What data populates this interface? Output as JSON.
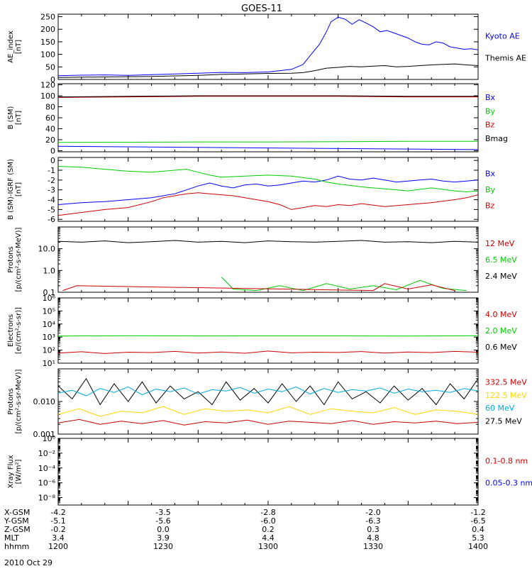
{
  "title": "GOES-11",
  "footer_date": "2010 Oct 29",
  "ephemeris": {
    "labels": [
      "X-GSM",
      "Y-GSM",
      "Z-GSM",
      "MLT",
      "hhmm"
    ],
    "columns": [
      [
        "-4.2",
        "-5.1",
        "-0.2",
        "3.4",
        "1200"
      ],
      [
        "-3.5",
        "-5.6",
        "0.0",
        "3.9",
        "1230"
      ],
      [
        "-2.8",
        "-6.0",
        "0.2",
        "4.4",
        "1300"
      ],
      [
        "-2.0",
        "-6.3",
        "0.3",
        "4.8",
        "1330"
      ],
      [
        "-1.2",
        "-6.5",
        "0.4",
        "5.3",
        "1400"
      ]
    ]
  },
  "chart_data": [
    {
      "type": "line",
      "ylabel_lines": [
        "AE_index",
        "[nT]"
      ],
      "ylim": [
        0,
        260
      ],
      "yticks": [
        0,
        50,
        100,
        150,
        200,
        250
      ],
      "ytick_labels": [
        "0",
        "50",
        "100",
        "150",
        "200",
        "250"
      ],
      "legend": [
        {
          "label": "Kyoto AE",
          "color": "#0000ff"
        },
        {
          "label": "Themis AE",
          "color": "#000000"
        }
      ],
      "series": [
        {
          "name": "Kyoto AE",
          "color": "#0000ff",
          "x": [
            0,
            10,
            20,
            30,
            40,
            50,
            60,
            70,
            80,
            90,
            100,
            105,
            108,
            112,
            115,
            117,
            120,
            123,
            126,
            129,
            132,
            135,
            138,
            141,
            144,
            147,
            150,
            153,
            156,
            159,
            162,
            165,
            168,
            171,
            174,
            177,
            180
          ],
          "y": [
            15,
            17,
            18,
            16,
            19,
            22,
            25,
            28,
            27,
            30,
            40,
            60,
            95,
            140,
            190,
            230,
            248,
            240,
            220,
            238,
            225,
            210,
            190,
            195,
            185,
            175,
            165,
            150,
            140,
            138,
            150,
            145,
            130,
            125,
            120,
            122,
            118
          ]
        },
        {
          "name": "Themis AE",
          "color": "#000000",
          "x": [
            0,
            10,
            20,
            30,
            40,
            50,
            60,
            70,
            80,
            90,
            100,
            105,
            110,
            115,
            120,
            125,
            130,
            135,
            140,
            145,
            150,
            155,
            160,
            165,
            170,
            175,
            180
          ],
          "y": [
            8,
            9,
            10,
            11,
            12,
            14,
            16,
            20,
            22,
            24,
            25,
            27,
            35,
            45,
            48,
            52,
            50,
            53,
            55,
            50,
            52,
            55,
            58,
            60,
            62,
            58,
            55
          ]
        }
      ]
    },
    {
      "type": "line",
      "ylabel_lines": [
        "B (SM)",
        "[nT]"
      ],
      "ylim": [
        -2,
        122
      ],
      "yticks": [
        0,
        20,
        40,
        60,
        80,
        100,
        120
      ],
      "ytick_labels": [
        "0",
        "20",
        "40",
        "60",
        "80",
        "100",
        "120"
      ],
      "legend": [
        {
          "label": "Bx",
          "color": "#0000ff"
        },
        {
          "label": "By",
          "color": "#00cc00"
        },
        {
          "label": "Bz",
          "color": "#cc0000"
        },
        {
          "label": "Bmag",
          "color": "#000000"
        }
      ],
      "series": [
        {
          "name": "Bx",
          "color": "#0000ff",
          "x": [
            0,
            30,
            60,
            90,
            120,
            150,
            180
          ],
          "y": [
            8,
            7,
            6,
            5,
            4,
            3,
            2
          ]
        },
        {
          "name": "By",
          "color": "#00cc00",
          "x": [
            0,
            30,
            60,
            90,
            120,
            150,
            180
          ],
          "y": [
            15,
            15.5,
            16,
            16,
            16.5,
            17,
            17
          ]
        },
        {
          "name": "Bz",
          "color": "#cc0000",
          "x": [
            0,
            30,
            60,
            90,
            120,
            150,
            180
          ],
          "y": [
            97,
            98,
            99,
            99,
            99,
            98,
            98
          ]
        },
        {
          "name": "Bmag",
          "color": "#000000",
          "x": [
            0,
            30,
            60,
            90,
            120,
            150,
            180
          ],
          "y": [
            98,
            99,
            100,
            100,
            100,
            99,
            99
          ]
        }
      ]
    },
    {
      "type": "line",
      "ylabel_lines": [
        "B (SM)-IGRF (SM)",
        "[nT]"
      ],
      "ylim": [
        -6.2,
        0.3
      ],
      "yticks": [
        0,
        -1,
        -2,
        -3,
        -4,
        -5,
        -6
      ],
      "ytick_labels": [
        "0",
        "-1",
        "-2",
        "-3",
        "-4",
        "-5",
        "-6"
      ],
      "legend": [
        {
          "label": "Bx",
          "color": "#0000ff"
        },
        {
          "label": "By",
          "color": "#00cc00"
        },
        {
          "label": "Bz",
          "color": "#cc0000"
        }
      ],
      "series": [
        {
          "name": "Bx",
          "color": "#0000ff",
          "x": [
            0,
            10,
            20,
            30,
            40,
            45,
            50,
            55,
            60,
            65,
            70,
            75,
            80,
            85,
            90,
            95,
            100,
            105,
            110,
            115,
            120,
            125,
            130,
            135,
            140,
            145,
            150,
            155,
            160,
            165,
            170,
            175,
            180
          ],
          "y": [
            -4.5,
            -4.3,
            -4.2,
            -4.0,
            -3.8,
            -3.6,
            -3.4,
            -3.0,
            -2.6,
            -2.3,
            -2.6,
            -2.8,
            -2.5,
            -2.4,
            -2.6,
            -2.5,
            -2.3,
            -2.1,
            -2.2,
            -2.0,
            -1.6,
            -1.9,
            -2.0,
            -1.8,
            -2.0,
            -2.2,
            -2.1,
            -2.0,
            -1.9,
            -2.1,
            -2.2,
            -2.1,
            -2.0
          ]
        },
        {
          "name": "By",
          "color": "#00cc00",
          "x": [
            0,
            10,
            20,
            30,
            40,
            50,
            55,
            60,
            65,
            70,
            80,
            90,
            100,
            110,
            115,
            120,
            130,
            140,
            150,
            160,
            170,
            175,
            180
          ],
          "y": [
            -0.6,
            -0.7,
            -0.9,
            -1.1,
            -1.2,
            -1.0,
            -0.9,
            -1.2,
            -1.5,
            -1.7,
            -1.6,
            -1.5,
            -1.6,
            -1.9,
            -2.2,
            -2.4,
            -2.7,
            -2.9,
            -3.1,
            -2.8,
            -3.1,
            -3.2,
            -3.1
          ]
        },
        {
          "name": "Bz",
          "color": "#cc0000",
          "x": [
            0,
            10,
            20,
            30,
            40,
            45,
            50,
            55,
            60,
            65,
            70,
            75,
            80,
            85,
            90,
            95,
            100,
            105,
            110,
            115,
            120,
            125,
            130,
            140,
            150,
            160,
            170,
            175,
            180
          ],
          "y": [
            -5.6,
            -5.3,
            -5.0,
            -4.8,
            -4.2,
            -3.8,
            -3.6,
            -3.4,
            -3.3,
            -3.4,
            -3.5,
            -3.6,
            -3.8,
            -4.0,
            -4.2,
            -4.5,
            -5.0,
            -4.8,
            -4.6,
            -4.7,
            -4.5,
            -4.6,
            -4.4,
            -4.7,
            -4.5,
            -4.3,
            -4.0,
            -3.8,
            -3.5
          ]
        }
      ]
    },
    {
      "type": "line",
      "yscale": "log",
      "ylabel_lines": [
        "Protons",
        "[p/(cm²-s-sr-MeV)]"
      ],
      "ylim": [
        0.1,
        100
      ],
      "yticks": [
        0.1,
        1,
        10
      ],
      "ytick_labels": [
        "0.1",
        "1.0",
        "10.0"
      ],
      "legend": [
        {
          "label": "12 MeV",
          "color": "#cc0000"
        },
        {
          "label": "6.5 MeV",
          "color": "#00cc00"
        },
        {
          "label": "2.4 MeV",
          "color": "#000000"
        }
      ],
      "series": [
        {
          "name": "2.4 MeV",
          "color": "#000000",
          "x": [
            0,
            10,
            20,
            30,
            40,
            50,
            60,
            70,
            80,
            90,
            100,
            110,
            120,
            130,
            140,
            150,
            160,
            170,
            180
          ],
          "y": [
            22,
            20,
            23,
            19,
            21,
            24,
            20,
            22,
            19,
            23,
            21,
            20,
            22,
            24,
            20,
            21,
            19,
            22,
            20
          ]
        },
        {
          "name": "6.5 MeV",
          "color": "#00cc00",
          "x": [
            70,
            75,
            85,
            95,
            105,
            115,
            125,
            135,
            145,
            155,
            165,
            175
          ],
          "y": [
            0.5,
            0.14,
            0.12,
            0.2,
            0.12,
            0.25,
            0.14,
            0.2,
            0.13,
            0.35,
            0.15,
            0.12
          ]
        },
        {
          "name": "12 MeV",
          "color": "#cc0000",
          "x": [
            2,
            8,
            135,
            140,
            150,
            160,
            170
          ],
          "y": [
            0.12,
            0.2,
            0.12,
            0.25,
            0.14,
            0.22,
            0.12
          ]
        }
      ]
    },
    {
      "type": "line",
      "yscale": "log",
      "ylabel_lines": [
        "Electrons",
        "[e/(cm²-s-sr)]"
      ],
      "ylim": [
        10,
        1000000
      ],
      "yticks": [
        10,
        100,
        1000,
        10000,
        100000,
        1000000
      ],
      "ytick_labels": [
        "10¹",
        "10²",
        "10³",
        "10⁴",
        "10⁵",
        "10⁶"
      ],
      "legend": [
        {
          "label": "4.0 MeV",
          "color": "#cc0000"
        },
        {
          "label": "2.0 MeV",
          "color": "#00cc00"
        },
        {
          "label": "0.6 MeV",
          "color": "#000000"
        }
      ],
      "series": [
        {
          "name": "2.0 MeV",
          "color": "#00cc00",
          "x": [
            0,
            30,
            60,
            90,
            120,
            150,
            180
          ],
          "y": [
            1200,
            1250,
            1220,
            1230,
            1240,
            1210,
            1250
          ]
        },
        {
          "name": "4.0 MeV",
          "color": "#cc0000",
          "x": [
            0,
            10,
            20,
            30,
            40,
            50,
            60,
            70,
            80,
            90,
            100,
            110,
            120,
            130,
            140,
            150,
            160,
            170,
            180
          ],
          "y": [
            60,
            75,
            55,
            70,
            65,
            80,
            60,
            72,
            58,
            85,
            62,
            70,
            66,
            78,
            60,
            72,
            65,
            80,
            70
          ]
        }
      ]
    },
    {
      "type": "line",
      "yscale": "log",
      "ylabel_lines": [
        "Protons",
        "[p/(cm²-s-sr-MeV)]"
      ],
      "ylim": [
        0.001,
        0.1
      ],
      "yticks": [
        0.001,
        0.01
      ],
      "ytick_labels": [
        "0.001",
        "0.010"
      ],
      "legend": [
        {
          "label": "332.5 MeV",
          "color": "#cc0000"
        },
        {
          "label": "122.5 MeV",
          "color": "#ffd700"
        },
        {
          "label": "60 MeV",
          "color": "#00aadd"
        },
        {
          "label": "27.5 MeV",
          "color": "#000000"
        }
      ],
      "series": [
        {
          "name": "27.5 MeV",
          "color": "#000000",
          "x": [
            0,
            6,
            12,
            18,
            24,
            30,
            36,
            42,
            48,
            54,
            60,
            66,
            72,
            78,
            84,
            90,
            96,
            102,
            108,
            114,
            120,
            126,
            132,
            138,
            144,
            150,
            156,
            162,
            168,
            174,
            180
          ],
          "y": [
            0.03,
            0.012,
            0.05,
            0.008,
            0.035,
            0.01,
            0.04,
            0.009,
            0.03,
            0.012,
            0.02,
            0.008,
            0.04,
            0.011,
            0.025,
            0.009,
            0.035,
            0.01,
            0.03,
            0.008,
            0.04,
            0.012,
            0.02,
            0.009,
            0.03,
            0.011,
            0.025,
            0.008,
            0.035,
            0.012,
            0.05
          ]
        },
        {
          "name": "60 MeV",
          "color": "#00aadd",
          "x": [
            0,
            6,
            12,
            18,
            24,
            30,
            36,
            42,
            48,
            54,
            60,
            66,
            72,
            78,
            84,
            90,
            96,
            102,
            108,
            114,
            120,
            126,
            132,
            138,
            144,
            150,
            156,
            162,
            168,
            174,
            180
          ],
          "y": [
            0.018,
            0.022,
            0.015,
            0.025,
            0.019,
            0.028,
            0.016,
            0.024,
            0.02,
            0.026,
            0.017,
            0.023,
            0.021,
            0.027,
            0.018,
            0.024,
            0.02,
            0.028,
            0.017,
            0.025,
            0.019,
            0.023,
            0.021,
            0.026,
            0.018,
            0.024,
            0.02,
            0.022,
            0.019,
            0.025,
            0.021
          ]
        },
        {
          "name": "122.5 MeV",
          "color": "#ffd700",
          "x": [
            0,
            9,
            18,
            27,
            36,
            45,
            54,
            63,
            72,
            81,
            90,
            99,
            108,
            117,
            126,
            135,
            144,
            153,
            162,
            171,
            180
          ],
          "y": [
            0.004,
            0.006,
            0.0035,
            0.005,
            0.0045,
            0.007,
            0.004,
            0.006,
            0.005,
            0.0055,
            0.0045,
            0.007,
            0.004,
            0.006,
            0.005,
            0.0045,
            0.0065,
            0.004,
            0.0055,
            0.005,
            0.004
          ]
        },
        {
          "name": "332.5 MeV",
          "color": "#cc0000",
          "x": [
            0,
            9,
            18,
            27,
            36,
            45,
            54,
            63,
            72,
            81,
            90,
            99,
            108,
            117,
            126,
            135,
            144,
            153,
            162,
            171,
            180
          ],
          "y": [
            0.0022,
            0.0028,
            0.002,
            0.0025,
            0.0021,
            0.0026,
            0.0019,
            0.0024,
            0.0022,
            0.0027,
            0.002,
            0.0025,
            0.0023,
            0.0021,
            0.0026,
            0.002,
            0.0024,
            0.0022,
            0.0025,
            0.0021,
            0.0023
          ]
        }
      ]
    },
    {
      "type": "line",
      "yscale": "log",
      "ylabel_lines": [
        "Xray Flux",
        "[W/m²]"
      ],
      "ylim": [
        1e-09,
        1
      ],
      "yticks": [
        1e-08,
        1e-06,
        0.0001,
        0.01,
        1
      ],
      "ytick_labels": [
        "10⁻⁸",
        "10⁻⁶",
        "10⁻⁴",
        "10⁻²",
        "10⁰"
      ],
      "legend": [
        {
          "label": "0.1-0.8 nm",
          "color": "#cc0000"
        },
        {
          "label": "0.05-0.3 nm",
          "color": "#0000ff"
        }
      ],
      "series": []
    }
  ]
}
